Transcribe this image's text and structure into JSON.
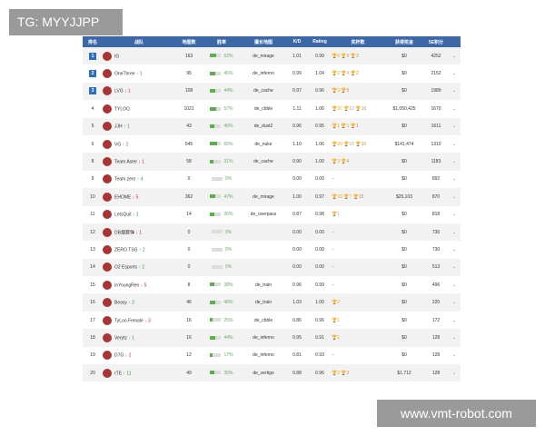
{
  "watermarks": {
    "top_left": "TG: MYYJJPP",
    "bottom_right": "www.vmt-robot.com"
  },
  "colors": {
    "header": "#3c68a8",
    "rank_badge": "#2d6fbf",
    "bar": "#5cb04c",
    "up": "#2a9a3a",
    "down": "#d22222"
  },
  "headers": [
    "排名",
    "战队",
    "地图数",
    "胜率",
    "擅长地图",
    "K/D",
    "Rating",
    "奖杯数",
    "获得奖金",
    "5E积分",
    ""
  ],
  "rows": [
    {
      "rank": "1",
      "team": "IG",
      "change": "",
      "dir": "",
      "maps": "163",
      "win": 52,
      "map": "de_mirage",
      "kd": "1.01",
      "rating": "0.99",
      "trophies": [
        6,
        8,
        3
      ],
      "prize": "$0",
      "points": "4252"
    },
    {
      "rank": "2",
      "team": "OneThree",
      "change": "1",
      "dir": "up",
      "maps": "95",
      "win": 45,
      "map": "de_inferno",
      "kd": "0.99",
      "rating": "1.04",
      "trophies": [
        2,
        4,
        2
      ],
      "prize": "$0",
      "points": "2152"
    },
    {
      "rank": "3",
      "team": "LVG",
      "change": "1",
      "dir": "down",
      "maps": "108",
      "win": 44,
      "map": "de_cache",
      "kd": "0.97",
      "rating": "0.96",
      "trophies": [
        3,
        null,
        5
      ],
      "prize": "$0",
      "points": "1989"
    },
    {
      "rank": "4",
      "team": "TYLOO",
      "change": "",
      "dir": "",
      "maps": "1021",
      "win": 57,
      "map": "de_cbble",
      "kd": "1.11",
      "rating": "1.06",
      "trophies": [
        37,
        22,
        16
      ],
      "prize": "$1,050,425",
      "points": "1670"
    },
    {
      "rank": "5",
      "team": "JJH",
      "change": "1",
      "dir": "up",
      "maps": "43",
      "win": 40,
      "map": "de_dust2",
      "kd": "0.96",
      "rating": "0.95",
      "trophies": [
        1,
        1,
        1
      ],
      "prize": "$0",
      "points": "1611"
    },
    {
      "rank": "6",
      "team": "VG",
      "change": "2",
      "dir": "up",
      "maps": "545",
      "win": 65,
      "map": "de_nuke",
      "kd": "1.10",
      "rating": "1.06",
      "trophies": [
        29,
        15,
        10
      ],
      "prize": "$141,474",
      "points": "1310"
    },
    {
      "rank": "8",
      "team": "Team Aster",
      "change": "1",
      "dir": "down",
      "maps": "58",
      "win": 31,
      "map": "de_cache",
      "kd": "0.90",
      "rating": "1.00",
      "trophies": [
        3,
        null,
        4
      ],
      "prize": "$0",
      "points": "1183"
    },
    {
      "rank": "9",
      "team": "Team zero",
      "change": "4",
      "dir": "up",
      "maps": "0",
      "win": 0,
      "map": "",
      "kd": "0.00",
      "rating": "0.00",
      "trophies": null,
      "prize": "$0",
      "points": "892"
    },
    {
      "rank": "10",
      "team": "EHOME",
      "change": "5",
      "dir": "down",
      "maps": "362",
      "win": 47,
      "map": "de_mirage",
      "kd": "1.00",
      "rating": "0.97",
      "trophies": [
        18,
        7,
        15
      ],
      "prize": "$25,103",
      "points": "870"
    },
    {
      "rank": "11",
      "team": "LetsQuit",
      "change": "1",
      "dir": "up",
      "maps": "14",
      "win": 36,
      "map": "de_overpass",
      "kd": "0.87",
      "rating": "0.98",
      "trophies": [
        null,
        1,
        null
      ],
      "prize": "$0",
      "points": "818"
    },
    {
      "rank": "12",
      "team": "DB烟雾弹",
      "change": "1",
      "dir": "down",
      "maps": "0",
      "win": 0,
      "map": "",
      "kd": "0.00",
      "rating": "0.00",
      "trophies": null,
      "prize": "$0",
      "points": "736"
    },
    {
      "rank": "13",
      "team": "ZERO.TSG",
      "change": "2",
      "dir": "up",
      "maps": "0",
      "win": 0,
      "map": "",
      "kd": "0.00",
      "rating": "0.00",
      "trophies": null,
      "prize": "$0",
      "points": "730"
    },
    {
      "rank": "14",
      "team": "O2 Esports",
      "change": "2",
      "dir": "up",
      "maps": "0",
      "win": 0,
      "map": "",
      "kd": "0.00",
      "rating": "0.00",
      "trophies": null,
      "prize": "$0",
      "points": "513"
    },
    {
      "rank": "15",
      "team": "InYoungRen",
      "change": "5",
      "dir": "down",
      "maps": "8",
      "win": 38,
      "map": "de_train",
      "kd": "0.96",
      "rating": "0.99",
      "trophies": null,
      "prize": "$0",
      "points": "496"
    },
    {
      "rank": "16",
      "team": "Beasy",
      "change": "2",
      "dir": "up",
      "maps": "46",
      "win": 48,
      "map": "de_train",
      "kd": "1.03",
      "rating": "1.00",
      "trophies": [
        2,
        null,
        null
      ],
      "prize": "$0",
      "points": "220"
    },
    {
      "rank": "17",
      "team": "TyLoo.Female",
      "change": "3",
      "dir": "down",
      "maps": "16",
      "win": 25,
      "map": "de_cbble",
      "kd": "0.86",
      "rating": "0.96",
      "trophies": [
        null,
        1,
        null
      ],
      "prize": "$0",
      "points": "172"
    },
    {
      "rank": "18",
      "team": "Verytz",
      "change": "1",
      "dir": "up",
      "maps": "16",
      "win": 44,
      "map": "de_inferno",
      "kd": "0.95",
      "rating": "0.91",
      "trophies": [
        1,
        null,
        null
      ],
      "prize": "$0",
      "points": "128"
    },
    {
      "rank": "19",
      "team": "D7G",
      "change": "2",
      "dir": "down",
      "maps": "12",
      "win": 17,
      "map": "de_inferno",
      "kd": "0.81",
      "rating": "0.93",
      "trophies": null,
      "prize": "$0",
      "points": "128"
    },
    {
      "rank": "20",
      "team": "rTE",
      "change": "11",
      "dir": "up",
      "maps": "49",
      "win": 35,
      "map": "de_vertigo",
      "kd": "0.88",
      "rating": "0.96",
      "trophies": [
        2,
        null,
        2
      ],
      "prize": "$1,712",
      "points": "128"
    }
  ],
  "empty_trophies": "--",
  "chevron": "⌄"
}
